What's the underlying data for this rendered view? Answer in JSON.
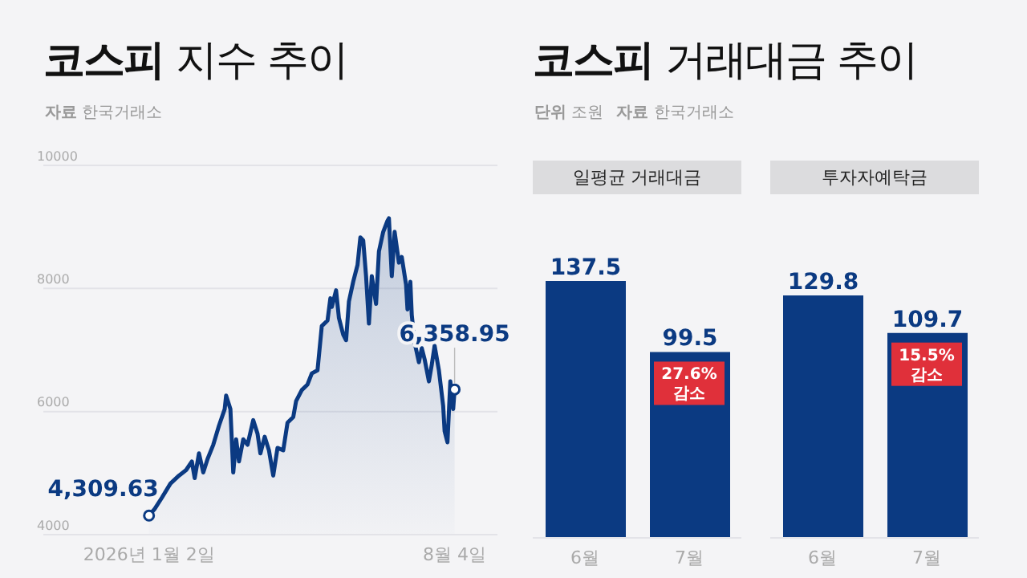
{
  "chart_data": [
    {
      "type": "area",
      "title": "코스피 지수 추이",
      "annotations": [
        "자료 한국거래소",
        {
          "text": "4,309.63",
          "x": "2026-01-02",
          "y": 4309.63
        },
        {
          "text": "6,358.95",
          "x": "2026-08-04",
          "y": 6358.95
        }
      ],
      "color": "#0b3a82",
      "grid": "y",
      "xlim": [
        "2025-10-20",
        "2026-09-03"
      ],
      "ylim": [
        4000,
        10000
      ],
      "yticks": [
        4000,
        6000,
        8000,
        10000
      ],
      "xticks": [
        {
          "value": "2026-01-02",
          "label": "2026년 1월 2일"
        },
        {
          "value": "2026-08-04",
          "label": "8월 4일"
        }
      ],
      "x": [
        "2026-01-02",
        "2026-01-06",
        "2026-01-11",
        "2026-01-17",
        "2026-01-23",
        "2026-01-28",
        "2026-02-01",
        "2026-02-03",
        "2026-02-06",
        "2026-02-09",
        "2026-02-12",
        "2026-02-16",
        "2026-02-20",
        "2026-02-24",
        "2026-02-25",
        "2026-02-28",
        "2026-03-02",
        "2026-03-04",
        "2026-03-06",
        "2026-03-09",
        "2026-03-12",
        "2026-03-16",
        "2026-03-19",
        "2026-03-21",
        "2026-03-24",
        "2026-03-27",
        "2026-03-30",
        "2026-04-02",
        "2026-04-06",
        "2026-04-09",
        "2026-04-13",
        "2026-04-15",
        "2026-04-19",
        "2026-04-23",
        "2026-04-26",
        "2026-04-30",
        "2026-05-03",
        "2026-05-07",
        "2026-05-09",
        "2026-05-10",
        "2026-05-13",
        "2026-05-15",
        "2026-05-18",
        "2026-05-20",
        "2026-05-22",
        "2026-05-25",
        "2026-05-28",
        "2026-05-30",
        "2026-06-01",
        "2026-06-03",
        "2026-06-05",
        "2026-06-07",
        "2026-06-10",
        "2026-06-12",
        "2026-06-15",
        "2026-06-18",
        "2026-06-19",
        "2026-06-21",
        "2026-06-23",
        "2026-06-26",
        "2026-06-28",
        "2026-07-01",
        "2026-07-02",
        "2026-07-04",
        "2026-07-05",
        "2026-07-07",
        "2026-07-10",
        "2026-07-12",
        "2026-07-14",
        "2026-07-17",
        "2026-07-19",
        "2026-07-21",
        "2026-07-24",
        "2026-07-27",
        "2026-07-28",
        "2026-07-30",
        "2026-08-01",
        "2026-08-03",
        "2026-08-04"
      ],
      "values": [
        4309.63,
        4420,
        4600,
        4830,
        4960,
        5050,
        5190,
        4920,
        5320,
        5010,
        5230,
        5460,
        5770,
        6040,
        6260,
        6040,
        5010,
        5550,
        5190,
        5550,
        5460,
        5860,
        5640,
        5320,
        5590,
        5370,
        4960,
        5410,
        5370,
        5820,
        5910,
        6170,
        6350,
        6440,
        6620,
        6670,
        7390,
        7480,
        7840,
        7700,
        7970,
        7520,
        7250,
        7160,
        7790,
        8110,
        8380,
        8830,
        8780,
        8200,
        7430,
        8200,
        7750,
        8600,
        8920,
        9100,
        9140,
        8200,
        8920,
        8420,
        8510,
        8060,
        7660,
        8110,
        7570,
        7120,
        6800,
        7030,
        6850,
        6490,
        6760,
        7070,
        6670,
        6090,
        5680,
        5500,
        6490,
        6040,
        6358.95
      ]
    },
    {
      "type": "bar",
      "title": "코스피 거래대금 추이",
      "annotations": [
        "단위 조원",
        "자료 한국거래소",
        {
          "text": "27.6% 감소",
          "x": "7월",
          "y": 99.5
        }
      ],
      "subtitle": "일평균 거래대금",
      "categories": [
        "6월",
        "7월"
      ],
      "values": [
        137.5,
        99.5
      ],
      "color": "#0b3a82",
      "data_labels": true,
      "tick_labels": "x"
    },
    {
      "type": "bar",
      "subtitle": "투자자예탁금",
      "annotations": [
        {
          "text": "15.5% 감소",
          "x": "7월",
          "y": 109.7
        }
      ],
      "categories": [
        "6월",
        "7월"
      ],
      "values": [
        129.8,
        109.7
      ],
      "color": "#0b3a82",
      "data_labels": true,
      "tick_labels": "x"
    }
  ]
}
